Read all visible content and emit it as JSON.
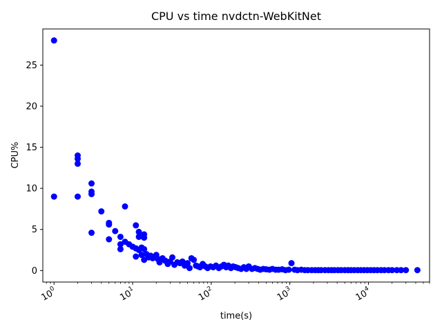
{
  "chart_data": {
    "type": "scatter",
    "title": "CPU vs time nvdctn-WebKitNet",
    "xlabel": "time(s)",
    "ylabel": "CPU%",
    "xscale": "log",
    "xlim": [
      0.72,
      60000
    ],
    "ylim": [
      -1.4,
      29.4
    ],
    "grid": false,
    "legend": "none",
    "marker_color": "#0000ff",
    "x_ticks": [
      {
        "value": 1,
        "base": "10",
        "exp": "0"
      },
      {
        "value": 10,
        "base": "10",
        "exp": "1"
      },
      {
        "value": 100,
        "base": "10",
        "exp": "2"
      },
      {
        "value": 1000,
        "base": "10",
        "exp": "3"
      },
      {
        "value": 10000,
        "base": "10",
        "exp": "4"
      }
    ],
    "y_ticks": [
      {
        "value": 0,
        "label": "0"
      },
      {
        "value": 5,
        "label": "5"
      },
      {
        "value": 10,
        "label": "10"
      },
      {
        "value": 15,
        "label": "15"
      },
      {
        "value": 20,
        "label": "20"
      },
      {
        "value": 25,
        "label": "25"
      }
    ],
    "points": [
      [
        1,
        28.0
      ],
      [
        1,
        9.0
      ],
      [
        2,
        14.0
      ],
      [
        2,
        13.6
      ],
      [
        2,
        13.0
      ],
      [
        2,
        9.0
      ],
      [
        3,
        10.6
      ],
      [
        3,
        9.6
      ],
      [
        3,
        9.3
      ],
      [
        3,
        4.6
      ],
      [
        4,
        7.2
      ],
      [
        5,
        5.8
      ],
      [
        5,
        5.6
      ],
      [
        5,
        3.8
      ],
      [
        6,
        4.8
      ],
      [
        7,
        4.1
      ],
      [
        7,
        3.2
      ],
      [
        7,
        2.6
      ],
      [
        8,
        7.8
      ],
      [
        8,
        3.5
      ],
      [
        9,
        3.2
      ],
      [
        10,
        2.9
      ],
      [
        11,
        5.5
      ],
      [
        11,
        2.7
      ],
      [
        11,
        1.7
      ],
      [
        12,
        4.7
      ],
      [
        12,
        4.1
      ],
      [
        12,
        2.5
      ],
      [
        13,
        2.8
      ],
      [
        13,
        1.9
      ],
      [
        14,
        4.4
      ],
      [
        14,
        4.0
      ],
      [
        14,
        2.6
      ],
      [
        14,
        1.3
      ],
      [
        15,
        2.0
      ],
      [
        16,
        1.6
      ],
      [
        17,
        1.8
      ],
      [
        18,
        1.5
      ],
      [
        20,
        1.9
      ],
      [
        21,
        1.4
      ],
      [
        22,
        1.0
      ],
      [
        24,
        1.5
      ],
      [
        26,
        1.2
      ],
      [
        28,
        0.8
      ],
      [
        30,
        1.1
      ],
      [
        32,
        1.6
      ],
      [
        34,
        0.7
      ],
      [
        37,
        1.0
      ],
      [
        40,
        0.9
      ],
      [
        43,
        1.1
      ],
      [
        46,
        0.6
      ],
      [
        50,
        0.9
      ],
      [
        53,
        0.3
      ],
      [
        56,
        1.5
      ],
      [
        60,
        1.3
      ],
      [
        64,
        0.6
      ],
      [
        68,
        0.5
      ],
      [
        72,
        0.4
      ],
      [
        78,
        0.8
      ],
      [
        84,
        0.5
      ],
      [
        90,
        0.3
      ],
      [
        98,
        0.5
      ],
      [
        106,
        0.4
      ],
      [
        115,
        0.6
      ],
      [
        125,
        0.3
      ],
      [
        135,
        0.5
      ],
      [
        145,
        0.7
      ],
      [
        155,
        0.4
      ],
      [
        165,
        0.6
      ],
      [
        178,
        0.3
      ],
      [
        190,
        0.5
      ],
      [
        205,
        0.4
      ],
      [
        220,
        0.3
      ],
      [
        240,
        0.2
      ],
      [
        260,
        0.4
      ],
      [
        280,
        0.2
      ],
      [
        300,
        0.5
      ],
      [
        330,
        0.2
      ],
      [
        360,
        0.3
      ],
      [
        390,
        0.2
      ],
      [
        420,
        0.1
      ],
      [
        460,
        0.2
      ],
      [
        500,
        0.15
      ],
      [
        550,
        0.1
      ],
      [
        600,
        0.2
      ],
      [
        660,
        0.1
      ],
      [
        720,
        0.1
      ],
      [
        800,
        0.15
      ],
      [
        880,
        0.05
      ],
      [
        970,
        0.1
      ],
      [
        1050,
        0.9
      ],
      [
        1150,
        0.1
      ],
      [
        1250,
        0.05
      ],
      [
        1400,
        0.1
      ],
      [
        1550,
        0.05
      ],
      [
        1700,
        0.05
      ],
      [
        1900,
        0.05
      ],
      [
        2100,
        0.05
      ],
      [
        2300,
        0.05
      ],
      [
        2500,
        0.05
      ],
      [
        2800,
        0.05
      ],
      [
        3100,
        0.05
      ],
      [
        3400,
        0.05
      ],
      [
        3700,
        0.05
      ],
      [
        4100,
        0.05
      ],
      [
        4500,
        0.05
      ],
      [
        5000,
        0.05
      ],
      [
        5500,
        0.05
      ],
      [
        6000,
        0.05
      ],
      [
        6600,
        0.05
      ],
      [
        7300,
        0.05
      ],
      [
        8000,
        0.05
      ],
      [
        8800,
        0.05
      ],
      [
        9700,
        0.05
      ],
      [
        10700,
        0.05
      ],
      [
        11800,
        0.05
      ],
      [
        13000,
        0.05
      ],
      [
        14500,
        0.05
      ],
      [
        16000,
        0.05
      ],
      [
        18000,
        0.05
      ],
      [
        20000,
        0.05
      ],
      [
        23000,
        0.05
      ],
      [
        26000,
        0.05
      ],
      [
        30000,
        0.05
      ],
      [
        42000,
        0.05
      ]
    ]
  }
}
